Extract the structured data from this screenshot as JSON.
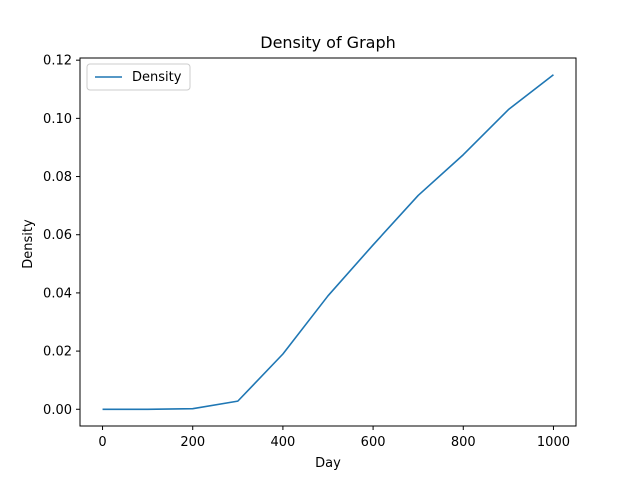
{
  "chart_data": {
    "type": "line",
    "title": "Density of Graph",
    "xlabel": "Day",
    "ylabel": "Density",
    "xlim": [
      -50,
      1050
    ],
    "ylim": [
      -0.00575,
      0.12075
    ],
    "xticks": [
      0,
      200,
      400,
      600,
      800,
      1000
    ],
    "yticks": [
      0.0,
      0.02,
      0.04,
      0.06,
      0.08,
      0.1,
      0.12
    ],
    "ytick_labels": [
      "0.00",
      "0.02",
      "0.04",
      "0.06",
      "0.08",
      "0.10",
      "0.12"
    ],
    "grid": false,
    "legend_position": "top-left",
    "series": [
      {
        "name": "Density",
        "color": "#1f77b4",
        "x": [
          0,
          100,
          200,
          300,
          400,
          500,
          600,
          700,
          800,
          900,
          1000
        ],
        "y": [
          0.0,
          0.0,
          0.0002,
          0.0028,
          0.019,
          0.039,
          0.0565,
          0.0735,
          0.0875,
          0.103,
          0.115
        ]
      }
    ]
  }
}
